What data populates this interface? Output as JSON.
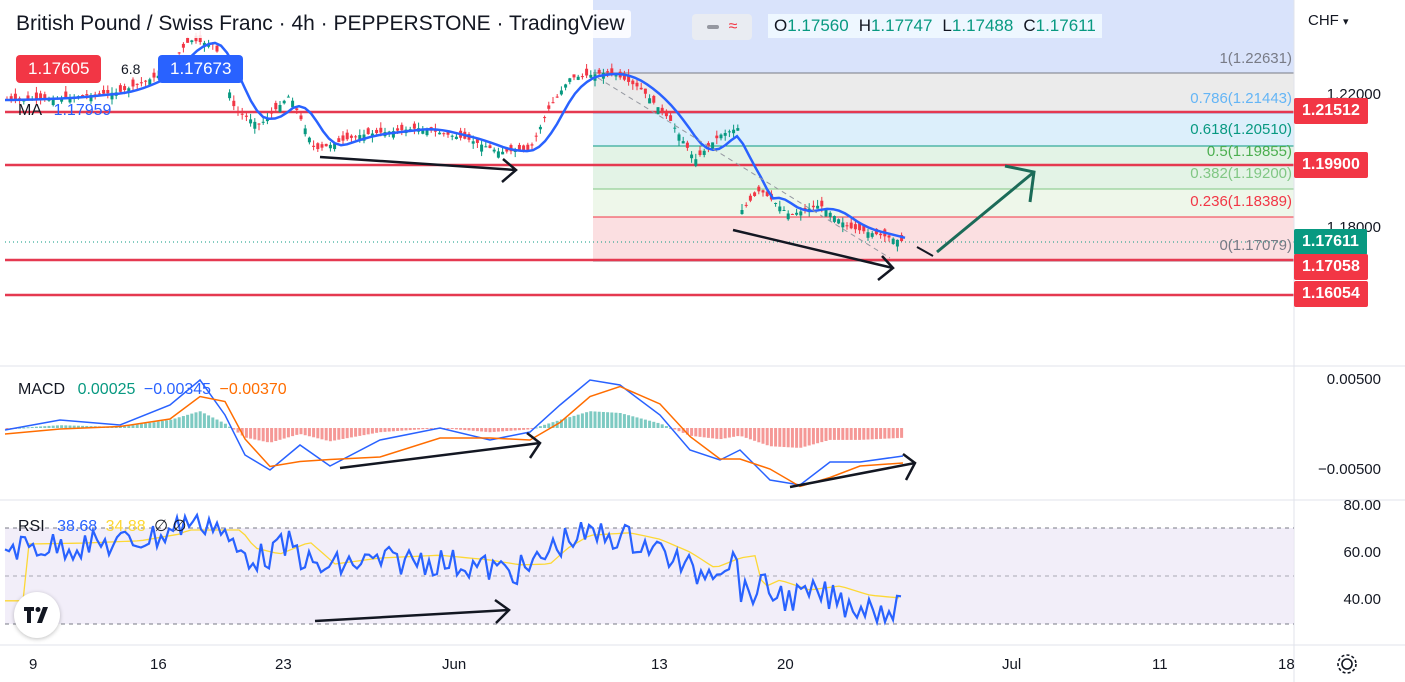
{
  "header": {
    "symbol": "British Pound / Swiss Franc",
    "interval": "4h",
    "exchange": "PEPPERSTONE",
    "source": "TradingView",
    "sell_price": "1.17605",
    "spread": "6.8",
    "buy_price": "1.17673",
    "ohlc": {
      "o_label": "O",
      "o": "1.17560",
      "h_label": "H",
      "h": "1.17747",
      "l_label": "L",
      "l": "1.17488",
      "c_label": "C",
      "c": "1.17611"
    },
    "ma_label": "MA",
    "ma_value": "1.17959"
  },
  "currency": "CHF",
  "price_axis": {
    "ticks": [
      "1.22000",
      "1.18000"
    ],
    "boxes": [
      {
        "value": "1.21512",
        "color": "#f23645"
      },
      {
        "value": "1.19900",
        "color": "#f23645"
      },
      {
        "value": "1.17611",
        "color": "#089981"
      },
      {
        "value": "1.17058",
        "color": "#f23645"
      },
      {
        "value": "1.16054",
        "color": "#f23645"
      }
    ]
  },
  "fib": [
    {
      "label": "1(1.22631)",
      "color": "#787b86"
    },
    {
      "label": "0.786(1.21443)",
      "color": "#64b5f6"
    },
    {
      "label": "0.618(1.20510)",
      "color": "#089981"
    },
    {
      "label": "0.5(1.19855)",
      "color": "#4caf50"
    },
    {
      "label": "0.382(1.19200)",
      "color": "#81c784"
    },
    {
      "label": "0.236(1.18389)",
      "color": "#f23645"
    },
    {
      "label": "0(1.17079)",
      "color": "#787b86"
    }
  ],
  "macd": {
    "label": "MACD",
    "hist": "0.00025",
    "macd": "−0.00345",
    "signal": "−0.00370",
    "ticks": [
      "0.00500",
      "−0.00500"
    ]
  },
  "rsi": {
    "label": "RSI",
    "value": "38.68",
    "ma": "34.88",
    "extra1": "∅",
    "extra2": "∅",
    "ticks": [
      "80.00",
      "60.00",
      "40.00"
    ]
  },
  "dates": [
    "9",
    "16",
    "23",
    "Jun",
    "13",
    "20",
    "Jul",
    "11",
    "18"
  ],
  "colors": {
    "up": "#089981",
    "down": "#f23645",
    "ma": "#2962ff",
    "macd_signal": "#ff6d00",
    "rsi_ma": "#fdd835",
    "rsi_line": "#2962ff"
  }
}
